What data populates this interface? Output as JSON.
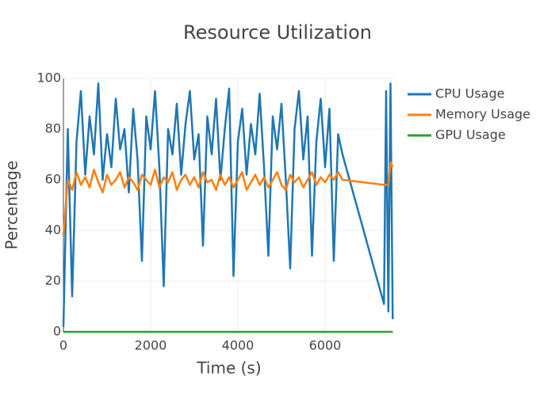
{
  "chart_data": {
    "type": "line",
    "title": "Resource Utilization",
    "x_label": "Time (s)",
    "y_label": "Percentage",
    "x": [
      0,
      100,
      200,
      300,
      400,
      500,
      600,
      700,
      800,
      900,
      1000,
      1100,
      1200,
      1300,
      1400,
      1500,
      1600,
      1700,
      1800,
      1900,
      2000,
      2100,
      2200,
      2300,
      2400,
      2500,
      2600,
      2700,
      2800,
      2900,
      3000,
      3100,
      3200,
      3300,
      3400,
      3500,
      3600,
      3700,
      3800,
      3900,
      4000,
      4100,
      4200,
      4300,
      4400,
      4500,
      4600,
      4700,
      4800,
      4900,
      5000,
      5100,
      5200,
      5300,
      5400,
      5500,
      5600,
      5700,
      5800,
      5900,
      6000,
      6100,
      6200,
      6300,
      6400,
      7350,
      7400,
      7450,
      7500,
      7550
    ],
    "series": [
      {
        "name": "CPU Usage",
        "color": "#1f77b4",
        "values": [
          2,
          80,
          14,
          75,
          95,
          62,
          85,
          70,
          98,
          60,
          78,
          65,
          92,
          72,
          80,
          55,
          88,
          68,
          28,
          85,
          72,
          95,
          65,
          18,
          80,
          70,
          90,
          62,
          82,
          95,
          68,
          78,
          34,
          85,
          70,
          92,
          60,
          80,
          96,
          22,
          75,
          88,
          62,
          82,
          70,
          94,
          65,
          30,
          85,
          72,
          90,
          60,
          25,
          80,
          95,
          68,
          85,
          30,
          75,
          92,
          65,
          88,
          28,
          78,
          70,
          11,
          95,
          8,
          98,
          5
        ]
      },
      {
        "name": "Memory Usage",
        "color": "#ff7f0e",
        "values": [
          38,
          60,
          56,
          63,
          58,
          61,
          57,
          64,
          59,
          55,
          62,
          58,
          60,
          63,
          57,
          61,
          59,
          56,
          62,
          60,
          58,
          64,
          57,
          61,
          59,
          63,
          56,
          60,
          62,
          58,
          61,
          57,
          63,
          59,
          60,
          56,
          62,
          58,
          61,
          57,
          60,
          63,
          56,
          59,
          62,
          58,
          61,
          57,
          60,
          63,
          58,
          56,
          62,
          59,
          61,
          57,
          60,
          63,
          58,
          61,
          59,
          62,
          60,
          63,
          60,
          58,
          58,
          58,
          67,
          65
        ]
      },
      {
        "name": "GPU Usage",
        "color": "#2ca02c",
        "values": [
          0,
          0,
          0,
          0,
          0,
          0,
          0,
          0,
          0,
          0,
          0,
          0,
          0,
          0,
          0,
          0,
          0,
          0,
          0,
          0,
          0,
          0,
          0,
          0,
          0,
          0,
          0,
          0,
          0,
          0,
          0,
          0,
          0,
          0,
          0,
          0,
          0,
          0,
          0,
          0,
          0,
          0,
          0,
          0,
          0,
          0,
          0,
          0,
          0,
          0,
          0,
          0,
          0,
          0,
          0,
          0,
          0,
          0,
          0,
          0,
          0,
          0,
          0,
          0,
          0,
          0,
          0,
          0,
          0,
          0
        ]
      }
    ],
    "xlim": [
      0,
      7600
    ],
    "ylim": [
      0,
      100
    ],
    "xticks": [
      0,
      2000,
      4000,
      6000
    ],
    "yticks": [
      0,
      20,
      40,
      60,
      80,
      100
    ],
    "grid": true
  }
}
